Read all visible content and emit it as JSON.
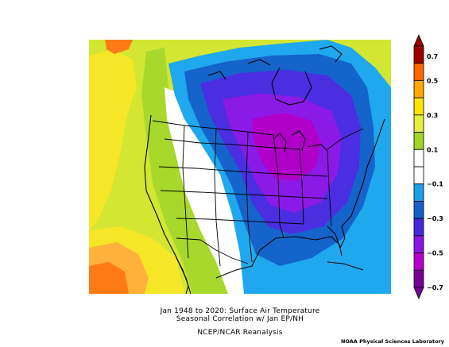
{
  "caption": {
    "line1": "Jan 1948 to 2020: Surface Air Temperature",
    "line2": "Seasonal Correlation w/ Jan EP/NH",
    "source": "NCEP/NCAR Reanalysis"
  },
  "credit": "NOAA Physical Sciences Laboratory",
  "legend": {
    "labels": [
      "0.7",
      "0.5",
      "0.3",
      "0.1",
      "−0.1",
      "−0.3",
      "−0.5",
      "−0.7"
    ],
    "colors": [
      "#a00000",
      "#ff6600",
      "#ffaa00",
      "#ffe400",
      "#e6f040",
      "#a0d528",
      "#ffffff",
      "#ffffff",
      "#1ea0e6",
      "#1460c8",
      "#4628dc",
      "#8c14e6",
      "#b400c8",
      "#780096"
    ]
  },
  "map_colors": {
    "orange": "#ff7a14",
    "light_orange": "#ffb13c",
    "yellow": "#f5e628",
    "yellow_green": "#d2e632",
    "green": "#a8d82c",
    "white": "#ffffff",
    "light_blue": "#20a8ee",
    "blue": "#1464cc",
    "indigo": "#4a2ee0",
    "purple": "#8c1ae6",
    "magenta": "#b000c8"
  }
}
